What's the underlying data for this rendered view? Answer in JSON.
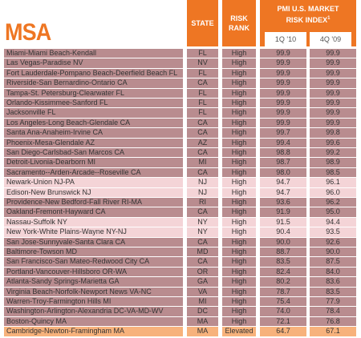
{
  "header": {
    "title": "MSA",
    "state": "STATE",
    "risk_rank": "RISK RANK",
    "index_title": "PMI U.S. MARKET RISK INDEX",
    "index_footnote": "1",
    "q1_10": "1Q '10",
    "q4_09": "4Q '09"
  },
  "table": {
    "rows": [
      [
        "Miami-Miami Beach-Kendall",
        "FL",
        "High",
        "99.9",
        "99.9"
      ],
      [
        "Las Vegas-Paradise NV",
        "NV",
        "High",
        "99.9",
        "99.9"
      ],
      [
        "Fort Lauderdale-Pompano Beach-Deerfield Beach FL",
        "FL",
        "High",
        "99.9",
        "99.9"
      ],
      [
        "Riverside-San Bernardino-Ontario CA",
        "CA",
        "High",
        "99.9",
        "99.9"
      ],
      [
        "Tampa-St. Petersburg-Clearwater FL",
        "FL",
        "High",
        "99.9",
        "99.9"
      ],
      [
        "Orlando-Kissimmee-Sanford FL",
        "FL",
        "High",
        "99.9",
        "99.9"
      ],
      [
        "Jacksonville FL",
        "FL",
        "High",
        "99.9",
        "99.9"
      ],
      [
        "Los Angeles-Long Beach-Glendale CA",
        "CA",
        "High",
        "99.9",
        "99.9"
      ],
      [
        "Santa Ana-Anaheim-Irvine CA",
        "CA",
        "High",
        "99.7",
        "99.8"
      ],
      [
        "Phoenix-Mesa-Glendale AZ",
        "AZ",
        "High",
        "99.4",
        "99.6"
      ],
      [
        "San Diego-Carlsbad-San Marcos CA",
        "CA",
        "High",
        "98.8",
        "99.2"
      ],
      [
        "Detroit-Livonia-Dearborn MI",
        "MI",
        "High",
        "98.7",
        "98.9"
      ],
      [
        "Sacramento--Arden-Arcade--Roseville CA",
        "CA",
        "High",
        "98.0",
        "98.5"
      ],
      [
        "Newark-Union NJ-PA",
        "NJ",
        "High",
        "94.7",
        "96.1"
      ],
      [
        "Edison-New Brunswick NJ",
        "NJ",
        "High",
        "94.7",
        "96.0"
      ],
      [
        "Providence-New Bedford-Fall River RI-MA",
        "RI",
        "High",
        "93.6",
        "96.2"
      ],
      [
        "Oakland-Fremont-Hayward CA",
        "CA",
        "High",
        "91.9",
        "95.0"
      ],
      [
        "Nassau-Suffolk NY",
        "NY",
        "High",
        "91.5",
        "94.4"
      ],
      [
        "New York-White Plains-Wayne NY-NJ",
        "NY",
        "High",
        "90.4",
        "93.5"
      ],
      [
        "San Jose-Sunnyvale-Santa Clara CA",
        "CA",
        "High",
        "90.0",
        "92.6"
      ],
      [
        "Baltimore-Towson MD",
        "MD",
        "High",
        "88.7",
        "90.0"
      ],
      [
        "San Francisco-San Mateo-Redwood City CA",
        "CA",
        "High",
        "83.5",
        "87.5"
      ],
      [
        "Portland-Vancouver-Hillsboro OR-WA",
        "OR",
        "High",
        "82.4",
        "84.0"
      ],
      [
        "Atlanta-Sandy Springs-Marietta GA",
        "GA",
        "High",
        "80.2",
        "83.6"
      ],
      [
        "Virginia Beach-Norfolk-Newport News VA-NC",
        "VA",
        "High",
        "78.7",
        "83.5"
      ],
      [
        "Warren-Troy-Farmington Hills MI",
        "MI",
        "High",
        "75.4",
        "77.9"
      ],
      [
        "Washington-Arlington-Alexandria DC-VA-MD-WV",
        "DC",
        "High",
        "74.0",
        "78.4"
      ],
      [
        "Boston-Quincy MA",
        "MA",
        "High",
        "72.1",
        "76.8"
      ],
      [
        "Cambridge-Newton-Framingham MA",
        "MA",
        "Elevated",
        "64.7",
        "67.1"
      ]
    ],
    "row_colors": [
      "#b98c8f",
      "#b98c8f",
      "#b98c8f",
      "#b98c8f",
      "#b98c8f",
      "#b98c8f",
      "#b98c8f",
      "#b98c8f",
      "#b98c8f",
      "#b98c8f",
      "#b98c8f",
      "#b98c8f",
      "#b98c8f",
      "#f4d4d7",
      "#f4d4d7",
      "#b98c8f",
      "#b98c8f",
      "#f4d4d7",
      "#f4d4d7",
      "#b98c8f",
      "#b98c8f",
      "#b98c8f",
      "#b98c8f",
      "#b98c8f",
      "#b98c8f",
      "#b98c8f",
      "#b98c8f",
      "#b98c8f",
      "#f7b27c"
    ]
  }
}
